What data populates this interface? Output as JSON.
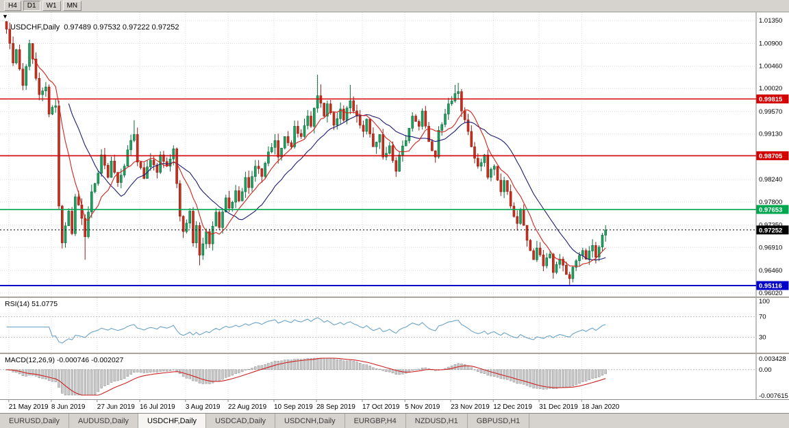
{
  "colors": {
    "bull": "#21a05f",
    "bull_stroke": "#0b6b3a",
    "bear": "#c5301f",
    "bear_stroke": "#8f1d12",
    "grid": "#dcdcdc",
    "ma_fast": "#d22118",
    "ma_slow": "#1c1a70",
    "rsi_line": "#6aa3c8",
    "macd_hist": "#c9c9c9",
    "macd_hist_stroke": "#8f8f8f",
    "macd_signal": "#cc2020",
    "axis_text": "#000000",
    "level_red": "#d40000",
    "level_green": "#00a650",
    "level_blue": "#0000c8",
    "current_price": "#000000"
  },
  "toolbar": {
    "timeframes": [
      "H4",
      "D1",
      "W1",
      "MN"
    ],
    "active": "D1"
  },
  "chart": {
    "symbol": "USDCHF",
    "period": "Daily",
    "title_display": "USDCHF,Daily  0.97489 0.97532 0.97222 0.97252",
    "dropdown_icon": "▼"
  },
  "indicators_display": {
    "rsi": "RSI(14) 51.0775",
    "macd": "MACD(12,26,9) -0.000746 -0.002027"
  },
  "chart_data": {
    "type": "candlestick",
    "symbol": "USDCHF",
    "timeframe": "Daily",
    "ohlc_display": {
      "open": "0.97489",
      "high": "0.97532",
      "low": "0.97222",
      "close": "0.97252"
    },
    "candle_count": 184,
    "noise_amp": 0.0011,
    "wick_amp": 0.0014,
    "price_axis": {
      "max_render": 1.0151,
      "min_render": 0.9595,
      "ticks": [
        "1.01350",
        "1.00900",
        "1.00460",
        "1.00020",
        "0.99570",
        "0.99130",
        "0.98240",
        "0.97800",
        "0.97350",
        "0.96910",
        "0.96460",
        "0.96020"
      ]
    },
    "levels": [
      {
        "value": "0.99815",
        "color": "#d40000",
        "width": 1.6,
        "type": "resistance"
      },
      {
        "value": "0.98705",
        "color": "#d40000",
        "width": 1.6,
        "type": "resistance"
      },
      {
        "value": "0.97653",
        "color": "#00a650",
        "width": 1.6,
        "type": "support"
      },
      {
        "value": "0.95116",
        "color": "#0000c8",
        "width": 2,
        "clamped": true,
        "type": "support"
      },
      {
        "value": "0.97252",
        "color": "#000000",
        "style": "dotted",
        "type": "current-price"
      }
    ],
    "x_axis": {
      "labels": [
        "21 May 2019",
        "8 Jun 2019",
        "27 Jun 2019",
        "16 Jul 2019",
        "3 Aug 2019",
        "22 Aug 2019",
        "10 Sep 2019",
        "28 Sep 2019",
        "17 Oct 2019",
        "5 Nov 2019",
        "23 Nov 2019",
        "12 Dec 2019",
        "31 Dec 2019",
        "18 Jan 2020"
      ],
      "indices": [
        1,
        14,
        28,
        41,
        55,
        68,
        82,
        95,
        109,
        122,
        136,
        149,
        163,
        176
      ]
    },
    "overlays": [
      {
        "name": "ma-fast",
        "period": 9
      },
      {
        "name": "ma-slow",
        "period": 20
      }
    ],
    "close_path": [
      [
        0,
        1.0118
      ],
      [
        2,
        1.0052
      ],
      [
        3,
        1.0078
      ],
      [
        5,
        1.0008
      ],
      [
        6,
        1.0045
      ],
      [
        7,
        1.009
      ],
      [
        9,
        1.0022
      ],
      [
        10,
        0.999
      ],
      [
        12,
        1.0005
      ],
      [
        13,
        0.9952
      ],
      [
        15,
        0.9968
      ],
      [
        16,
        0.9772
      ],
      [
        17,
        0.97
      ],
      [
        19,
        0.9762
      ],
      [
        20,
        0.9718
      ],
      [
        21,
        0.979
      ],
      [
        23,
        0.9748
      ],
      [
        24,
        0.9712
      ],
      [
        26,
        0.98
      ],
      [
        28,
        0.9836
      ],
      [
        29,
        0.9872
      ],
      [
        31,
        0.9828
      ],
      [
        32,
        0.986
      ],
      [
        34,
        0.9818
      ],
      [
        36,
        0.985
      ],
      [
        37,
        0.9882
      ],
      [
        39,
        0.9912
      ],
      [
        40,
        0.9858
      ],
      [
        42,
        0.9826
      ],
      [
        44,
        0.9862
      ],
      [
        46,
        0.9838
      ],
      [
        47,
        0.9872
      ],
      [
        49,
        0.985
      ],
      [
        51,
        0.9884
      ],
      [
        52,
        0.9816
      ],
      [
        53,
        0.9752
      ],
      [
        54,
        0.9722
      ],
      [
        56,
        0.9762
      ],
      [
        57,
        0.97
      ],
      [
        58,
        0.9734
      ],
      [
        59,
        0.9676
      ],
      [
        61,
        0.9722
      ],
      [
        62,
        0.9698
      ],
      [
        64,
        0.976
      ],
      [
        65,
        0.973
      ],
      [
        67,
        0.9788
      ],
      [
        68,
        0.9768
      ],
      [
        70,
        0.9802
      ],
      [
        71,
        0.9782
      ],
      [
        73,
        0.9828
      ],
      [
        74,
        0.9808
      ],
      [
        76,
        0.985
      ],
      [
        78,
        0.983
      ],
      [
        80,
        0.9878
      ],
      [
        82,
        0.99
      ],
      [
        83,
        0.9868
      ],
      [
        85,
        0.9908
      ],
      [
        87,
        0.9888
      ],
      [
        88,
        0.9928
      ],
      [
        90,
        0.9908
      ],
      [
        92,
        0.9948
      ],
      [
        93,
        0.9928
      ],
      [
        95,
        0.9988
      ],
      [
        97,
        0.9948
      ],
      [
        98,
        0.9972
      ],
      [
        100,
        0.993
      ],
      [
        102,
        0.9962
      ],
      [
        103,
        0.994
      ],
      [
        105,
        0.9978
      ],
      [
        107,
        0.9948
      ],
      [
        109,
        0.9918
      ],
      [
        110,
        0.9942
      ],
      [
        112,
        0.9888
      ],
      [
        114,
        0.9912
      ],
      [
        115,
        0.9868
      ],
      [
        117,
        0.989
      ],
      [
        119,
        0.984
      ],
      [
        120,
        0.9872
      ],
      [
        122,
        0.99
      ],
      [
        124,
        0.9948
      ],
      [
        126,
        0.9928
      ],
      [
        127,
        0.9958
      ],
      [
        129,
        0.9898
      ],
      [
        131,
        0.9868
      ],
      [
        132,
        0.992
      ],
      [
        134,
        0.9952
      ],
      [
        135,
        0.9972
      ],
      [
        137,
        0.9992
      ],
      [
        138,
        0.9996
      ],
      [
        139,
        0.9958
      ],
      [
        141,
        0.9918
      ],
      [
        142,
        0.9888
      ],
      [
        144,
        0.985
      ],
      [
        146,
        0.9872
      ],
      [
        147,
        0.9828
      ],
      [
        149,
        0.985
      ],
      [
        151,
        0.98
      ],
      [
        152,
        0.9822
      ],
      [
        154,
        0.9772
      ],
      [
        156,
        0.9738
      ],
      [
        157,
        0.9765
      ],
      [
        159,
        0.9705
      ],
      [
        161,
        0.9667
      ],
      [
        162,
        0.969
      ],
      [
        164,
        0.9655
      ],
      [
        166,
        0.9678
      ],
      [
        167,
        0.9642
      ],
      [
        169,
        0.9668
      ],
      [
        171,
        0.9638
      ],
      [
        172,
        0.963
      ],
      [
        174,
        0.9665
      ],
      [
        176,
        0.9685
      ],
      [
        177,
        0.9668
      ],
      [
        179,
        0.9695
      ],
      [
        180,
        0.9672
      ],
      [
        182,
        0.9715
      ],
      [
        183,
        0.97252
      ]
    ],
    "spike_highs": [
      {
        "i": 7,
        "h": 1.0094
      },
      {
        "i": 39,
        "h": 0.994
      },
      {
        "i": 95,
        "h": 1.0029
      },
      {
        "i": 96,
        "h": 1.001
      },
      {
        "i": 105,
        "h": 1.0009
      },
      {
        "i": 137,
        "h": 1.0009
      },
      {
        "i": 138,
        "h": 1.0013
      }
    ],
    "spike_lows": [
      {
        "i": 17,
        "l": 0.9689
      },
      {
        "i": 24,
        "l": 0.9667
      },
      {
        "i": 59,
        "l": 0.9656
      },
      {
        "i": 167,
        "l": 0.963
      },
      {
        "i": 172,
        "l": 0.9618
      }
    ],
    "indicators": {
      "rsi": {
        "label": "RSI(14)",
        "value": "51.0775",
        "period": 14,
        "axis": [
          {
            "v": 100,
            "label": "100"
          },
          {
            "v": 70,
            "label": "70"
          },
          {
            "v": 30,
            "label": "30"
          }
        ]
      },
      "macd": {
        "label": "MACD(12,26,9)",
        "main": "-0.000746",
        "signal": "-0.002027",
        "axis": [
          "0.003428",
          "0.00",
          "-0.007615"
        ]
      }
    }
  },
  "tabs": {
    "items": [
      "EURUSD,Daily",
      "AUDUSD,Daily",
      "USDCHF,Daily",
      "USDCAD,Daily",
      "USDCNH,Daily",
      "EURGBP,H4",
      "NZDUSD,H1",
      "GBPUSD,H1"
    ],
    "active_index": 2
  }
}
